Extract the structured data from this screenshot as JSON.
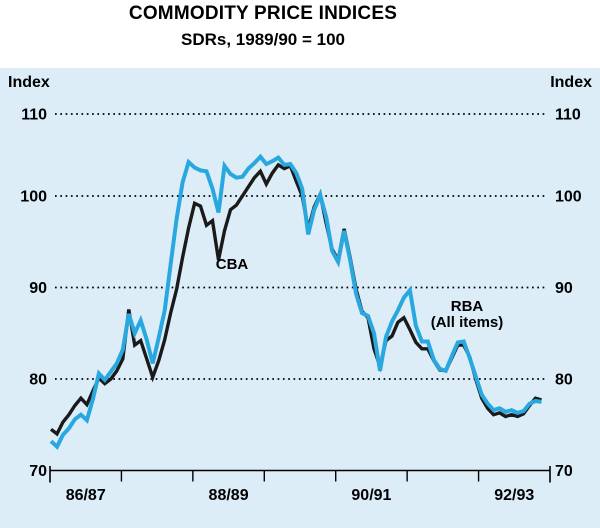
{
  "header": {
    "title": "COMMODITY PRICE INDICES",
    "subtitle": "SDRs, 1989/90 = 100"
  },
  "axis": {
    "left_unit_label": "Index",
    "right_unit_label": "Index"
  },
  "annotations": {
    "cba_label": "CBA",
    "rba_label_line1": "RBA",
    "rba_label_line2": "(All items)"
  },
  "colors": {
    "panel_bg": "#dcedf8",
    "cba_line": "#1a1a1a",
    "rba_line": "#29a8e0",
    "grid": "#000000",
    "axis": "#000000",
    "text": "#000000"
  },
  "chart_data": {
    "type": "line",
    "title": "COMMODITY PRICE INDICES",
    "subtitle": "SDRs, 1989/90 = 100",
    "ylabel": "Index",
    "ylim": [
      70,
      110
    ],
    "yticks": [
      70,
      80,
      90,
      100,
      110
    ],
    "xtick_labels": [
      "86/87",
      "88/89",
      "90/91",
      "92/93"
    ],
    "x_note": "evenly spaced points spanning seven fiscal years 86/87 through 92/93",
    "grid": "dotted horizontal gridlines at 80, 90, 100, 110",
    "legend_position": "labels drawn beside lines (CBA near 88/89 dip, RBA (All items) near 90/91 peak)",
    "series": [
      {
        "name": "CBA",
        "color": "#1a1a1a",
        "values": [
          74.5,
          74.0,
          75.3,
          76.1,
          77.1,
          77.9,
          77.2,
          78.7,
          80.1,
          79.5,
          80.0,
          80.9,
          82.2,
          87.6,
          83.7,
          84.2,
          82.2,
          80.2,
          82.0,
          84.3,
          87.2,
          89.8,
          93.3,
          96.5,
          99.2,
          98.9,
          96.8,
          97.3,
          93.0,
          96.2,
          98.5,
          99.0,
          100.0,
          101.0,
          102.0,
          102.7,
          101.3,
          102.5,
          103.4,
          103.0,
          103.3,
          101.6,
          100.0,
          96.4,
          98.8,
          100.2,
          97.0,
          94.2,
          93.0,
          96.4,
          93.3,
          89.8,
          87.4,
          86.7,
          83.3,
          81.4,
          84.2,
          84.7,
          86.2,
          86.7,
          85.4,
          84.0,
          83.3,
          83.3,
          82.0,
          81.0,
          80.9,
          82.3,
          83.7,
          83.7,
          82.4,
          80.0,
          77.9,
          76.8,
          76.1,
          76.3,
          75.9,
          76.1,
          75.9,
          76.2,
          77.1,
          77.9,
          77.7
        ]
      },
      {
        "name": "RBA (All items)",
        "color": "#29a8e0",
        "values": [
          73.2,
          72.6,
          73.9,
          74.6,
          75.6,
          76.1,
          75.5,
          77.8,
          80.6,
          79.9,
          80.8,
          81.7,
          83.2,
          87.1,
          85.0,
          86.4,
          84.3,
          81.7,
          84.5,
          87.5,
          92.5,
          97.5,
          101.5,
          103.7,
          103.1,
          102.8,
          102.7,
          100.8,
          98.2,
          103.3,
          102.4,
          102.0,
          102.1,
          103.0,
          103.6,
          104.3,
          103.5,
          103.8,
          104.2,
          103.4,
          103.5,
          102.5,
          100.8,
          95.8,
          98.5,
          100.1,
          97.7,
          94.0,
          92.8,
          96.2,
          93.0,
          89.3,
          87.2,
          86.9,
          85.0,
          80.9,
          84.6,
          86.3,
          87.5,
          88.9,
          89.7,
          85.8,
          84.1,
          84.1,
          82.1,
          81.1,
          80.9,
          82.5,
          84.0,
          84.1,
          82.3,
          80.3,
          78.3,
          77.3,
          76.6,
          76.8,
          76.4,
          76.6,
          76.3,
          76.5,
          77.3,
          77.6,
          77.5
        ]
      }
    ]
  }
}
